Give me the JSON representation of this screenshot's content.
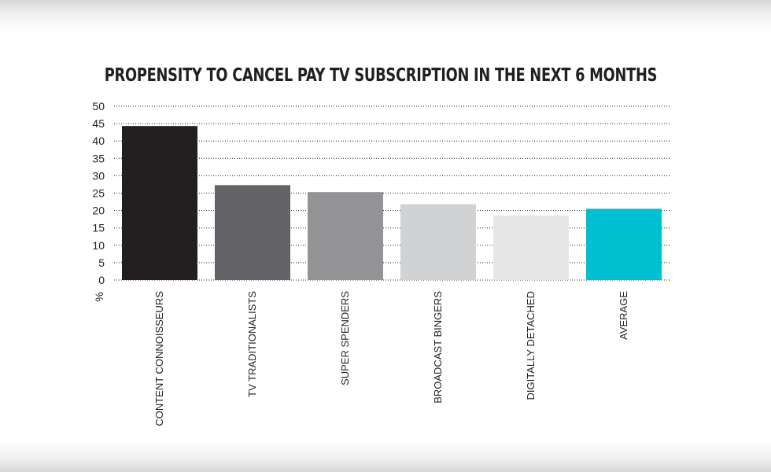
{
  "chart_data": {
    "type": "bar",
    "title": "PROPENSITY TO CANCEL PAY TV SUBSCRIPTION IN THE NEXT 6 MONTHS",
    "ylabel": "%",
    "xlabel": "",
    "ylim": [
      0,
      50
    ],
    "yticks": [
      0,
      5,
      10,
      15,
      20,
      25,
      30,
      35,
      40,
      45,
      50
    ],
    "grid": true,
    "categories": [
      "CONTENT CONNOISSEURS",
      "TV TRADITIONALISTS",
      "SUPER SPENDERS",
      "BROADCAST BINGERS",
      "DIGITALLY DETACHED",
      "AVERAGE"
    ],
    "values": [
      44.3,
      27.3,
      25.3,
      21.8,
      18.6,
      20.5
    ],
    "colors": [
      "#231f20",
      "#636266",
      "#939396",
      "#d1d2d4",
      "#e6e6e7",
      "#00bfd1"
    ]
  }
}
